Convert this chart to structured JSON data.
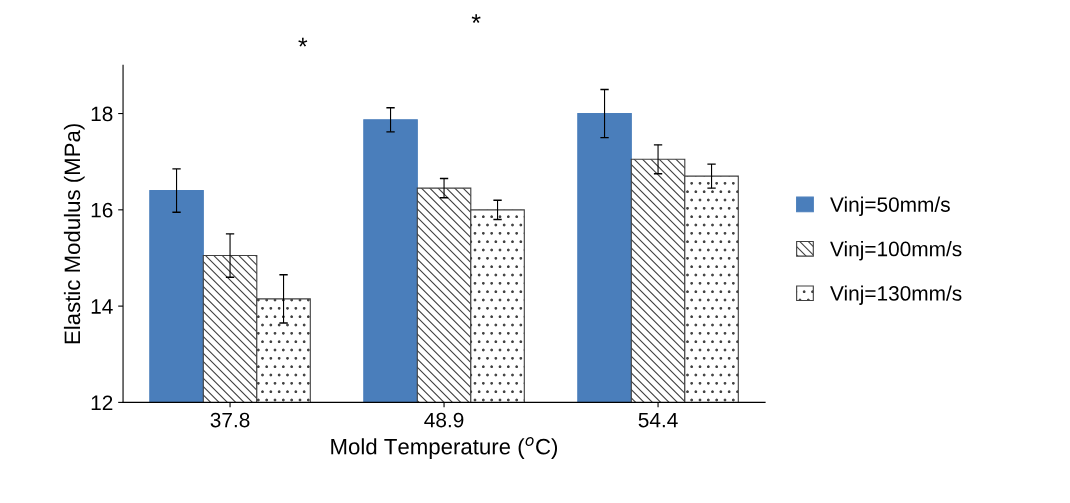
{
  "chart_data": {
    "type": "bar",
    "xlabel": "Mold Temperature ($^{o}$C)",
    "ylabel": "Elastic Modulus (MPa)",
    "categories": [
      "37.8",
      "48.9",
      "54.4"
    ],
    "series": [
      {
        "name": "Vinj=50mm/s",
        "color": "#4a7ebb",
        "values": [
          16.4,
          17.87,
          18.0
        ],
        "errors": [
          0.45,
          0.25,
          0.5
        ]
      },
      {
        "name": "Vinj=100mm/s",
        "color": "#404040",
        "values": [
          15.05,
          16.45,
          17.05
        ],
        "errors": [
          0.45,
          0.2,
          0.3
        ]
      },
      {
        "name": "Vinj=130mm/s",
        "color": "#404040",
        "values": [
          14.15,
          16.0,
          16.7
        ],
        "errors": [
          0.5,
          0.2,
          0.25
        ]
      }
    ],
    "ylim": [
      12,
      19
    ],
    "yticks": [
      12,
      14,
      16,
      18
    ],
    "grid": false,
    "legend": "right",
    "annotations": [
      "*",
      "*"
    ]
  }
}
